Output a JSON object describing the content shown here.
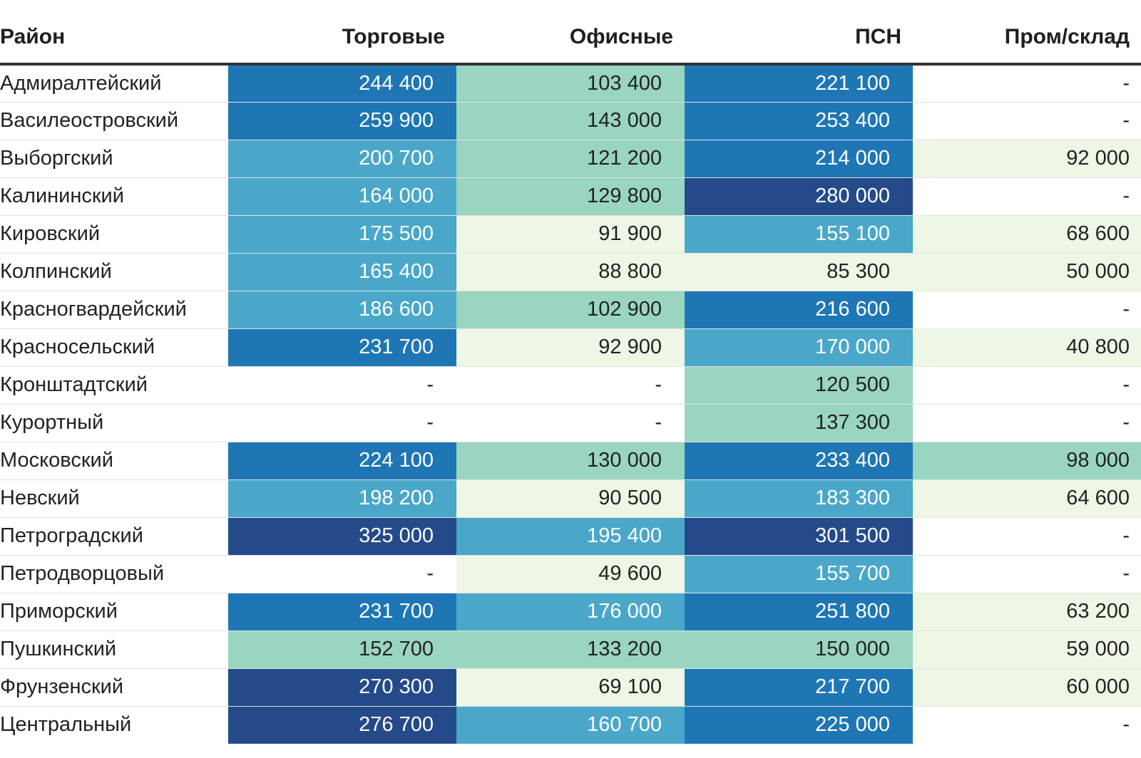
{
  "chart_data": {
    "type": "table",
    "title": "",
    "columns": [
      "Район",
      "Торговые",
      "Офисные",
      "ПСН",
      "Пром/склад"
    ],
    "rows": [
      {
        "district": "Адмиралтейский",
        "values": [
          "244 400",
          "103 400",
          "221 100",
          "-"
        ],
        "levels": [
          3,
          1,
          3,
          0
        ]
      },
      {
        "district": "Василеостровский",
        "values": [
          "259 900",
          "143 000",
          "253 400",
          "-"
        ],
        "levels": [
          3,
          1,
          3,
          0
        ]
      },
      {
        "district": "Выборгский",
        "values": [
          "200 700",
          "121 200",
          "214 000",
          "92 000"
        ],
        "levels": [
          2,
          1,
          3,
          0.5
        ]
      },
      {
        "district": "Калининский",
        "values": [
          "164 000",
          "129 800",
          "280 000",
          "-"
        ],
        "levels": [
          2,
          1,
          4,
          0
        ]
      },
      {
        "district": "Кировский",
        "values": [
          "175 500",
          "91 900",
          "155 100",
          "68 600"
        ],
        "levels": [
          2,
          0.5,
          2,
          0.5
        ]
      },
      {
        "district": "Колпинский",
        "values": [
          "165 400",
          "88 800",
          "85 300",
          "50 000"
        ],
        "levels": [
          2,
          0.5,
          0.5,
          0.5
        ]
      },
      {
        "district": "Красногвардейский",
        "values": [
          "186 600",
          "102 900",
          "216 600",
          "-"
        ],
        "levels": [
          2,
          1,
          3,
          0
        ]
      },
      {
        "district": "Красносельский",
        "values": [
          "231 700",
          "92 900",
          "170 000",
          "40 800"
        ],
        "levels": [
          3,
          0.5,
          2,
          0.5
        ]
      },
      {
        "district": "Кронштадтский",
        "values": [
          "-",
          "-",
          "120 500",
          "-"
        ],
        "levels": [
          0,
          0,
          1,
          0
        ]
      },
      {
        "district": "Курортный",
        "values": [
          "-",
          "-",
          "137 300",
          "-"
        ],
        "levels": [
          0,
          0,
          1,
          0
        ]
      },
      {
        "district": "Московский",
        "values": [
          "224 100",
          "130 000",
          "233 400",
          "98 000"
        ],
        "levels": [
          3,
          1,
          3,
          1
        ]
      },
      {
        "district": "Невский",
        "values": [
          "198 200",
          "90 500",
          "183 300",
          "64 600"
        ],
        "levels": [
          2,
          0.5,
          2,
          0.5
        ]
      },
      {
        "district": "Петроградский",
        "values": [
          "325 000",
          "195 400",
          "301 500",
          "-"
        ],
        "levels": [
          4,
          2,
          4,
          0
        ]
      },
      {
        "district": "Петродворцовый",
        "values": [
          "-",
          "49 600",
          "155 700",
          "-"
        ],
        "levels": [
          0,
          0.5,
          2,
          0
        ]
      },
      {
        "district": "Приморский",
        "values": [
          "231 700",
          "176 000",
          "251 800",
          "63 200"
        ],
        "levels": [
          3,
          2,
          3,
          0.5
        ]
      },
      {
        "district": "Пушкинский",
        "values": [
          "152 700",
          "133 200",
          "150 000",
          "59 000"
        ],
        "levels": [
          1,
          1,
          1,
          0.5
        ]
      },
      {
        "district": "Фрунзенский",
        "values": [
          "270 300",
          "69 100",
          "217 700",
          "60 000"
        ],
        "levels": [
          4,
          0.5,
          3,
          0.5
        ]
      },
      {
        "district": "Центральный",
        "values": [
          "276 700",
          "160 700",
          "225 000",
          "-"
        ],
        "levels": [
          4,
          2,
          3,
          0
        ]
      }
    ]
  },
  "palette": {
    "0": "#ffffff",
    "0.5": "#eef7e6",
    "1": "#99d5c0",
    "2": "#4aa7ca",
    "3": "#1e76b5",
    "4": "#244a8a"
  },
  "text_colors": {
    "dark": "#222222",
    "light": "#ffffff"
  }
}
